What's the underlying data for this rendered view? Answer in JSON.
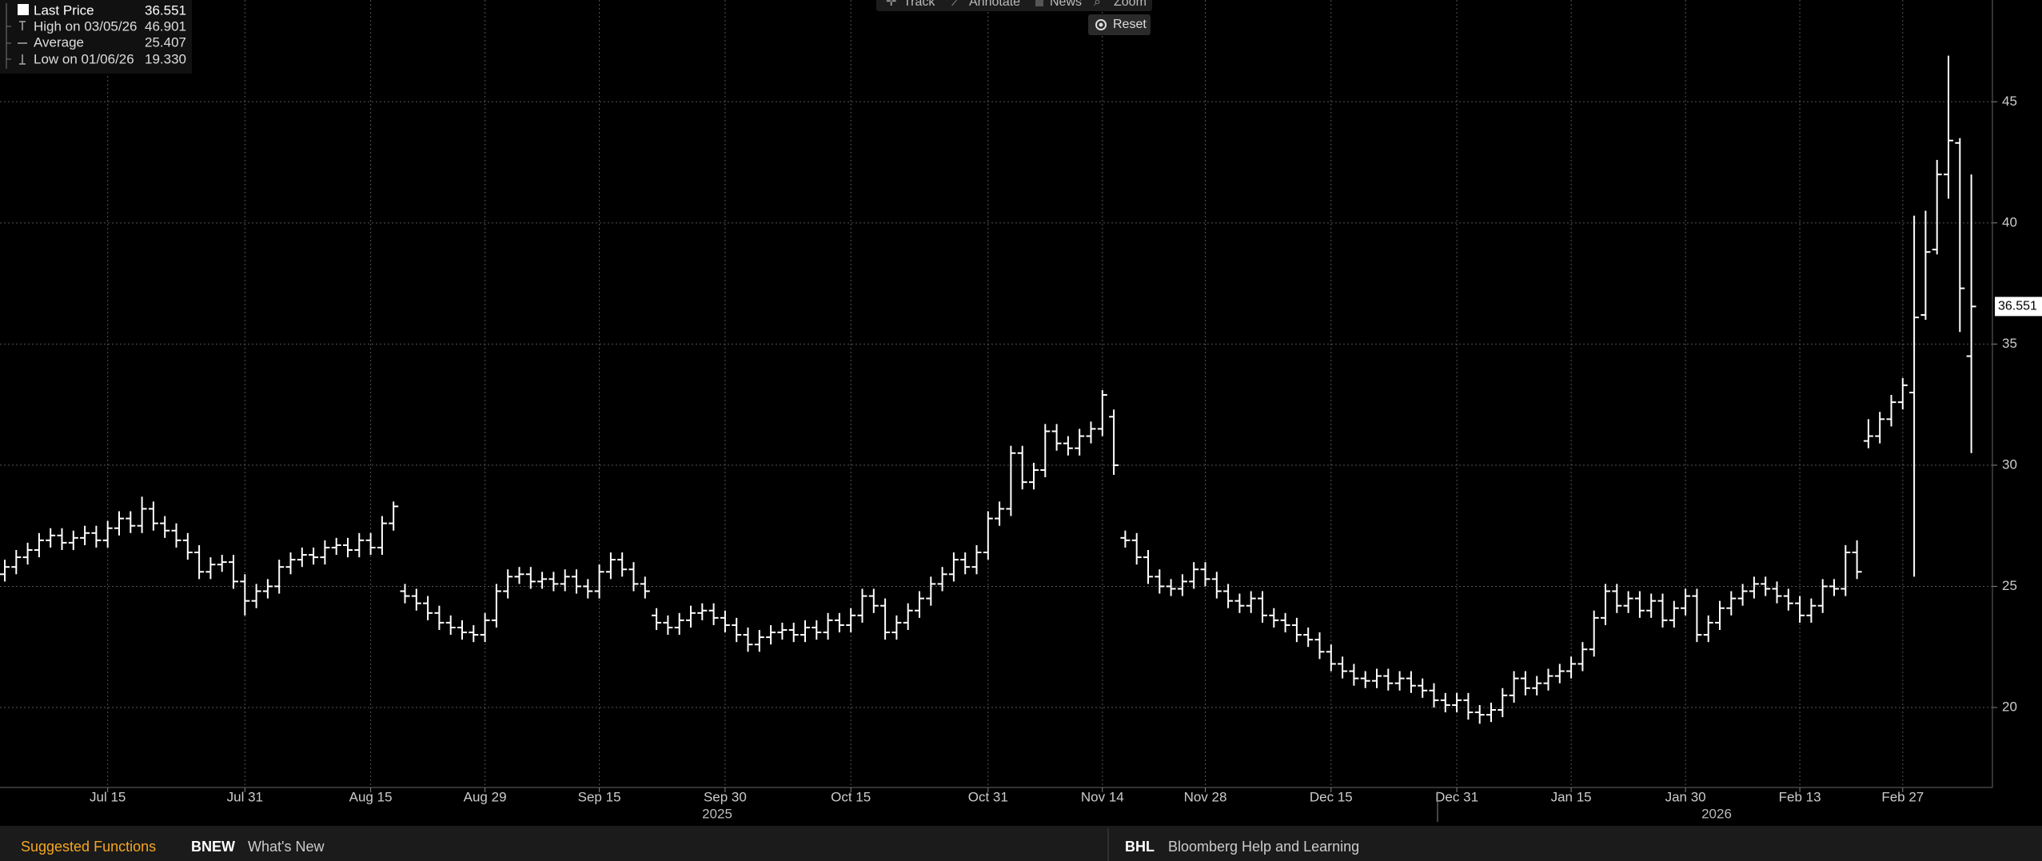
{
  "chart_data": {
    "type": "ohlc",
    "color": "#ffffff",
    "grid": true,
    "ylim": [
      16.7,
      49.2
    ],
    "yticks": [
      20,
      25,
      30,
      35,
      40,
      45
    ],
    "year_labels": [
      "2025",
      "2026"
    ],
    "legend": [
      {
        "name": "Last Price",
        "value": 36.551
      },
      {
        "name": "High on 03/05/26",
        "value": 46.901
      },
      {
        "name": "Average",
        "value": 25.407
      },
      {
        "name": "Low on 01/06/26",
        "value": 19.33,
        "value_label": "19.330"
      }
    ],
    "categories": [
      null,
      null,
      null,
      null,
      null,
      null,
      null,
      null,
      null,
      "Jul 15",
      null,
      null,
      null,
      null,
      null,
      null,
      null,
      null,
      null,
      null,
      null,
      "Jul 31",
      null,
      null,
      null,
      null,
      null,
      null,
      null,
      null,
      null,
      null,
      "Aug 15",
      null,
      null,
      null,
      null,
      null,
      null,
      null,
      null,
      null,
      "Aug 29",
      null,
      null,
      null,
      null,
      null,
      null,
      null,
      null,
      null,
      "Sep 15",
      null,
      null,
      null,
      null,
      null,
      null,
      null,
      null,
      null,
      null,
      "Sep 30",
      null,
      null,
      null,
      null,
      null,
      null,
      null,
      null,
      null,
      null,
      "Oct 15",
      null,
      null,
      null,
      null,
      null,
      null,
      null,
      null,
      null,
      null,
      null,
      "Oct 31",
      null,
      null,
      null,
      null,
      null,
      null,
      null,
      null,
      null,
      "Nov 14",
      null,
      null,
      null,
      null,
      null,
      null,
      null,
      null,
      "Nov 28",
      null,
      null,
      null,
      null,
      null,
      null,
      null,
      null,
      null,
      null,
      "Dec 15",
      null,
      null,
      null,
      null,
      null,
      null,
      null,
      null,
      null,
      null,
      "Dec 31",
      null,
      null,
      null,
      null,
      null,
      null,
      null,
      null,
      null,
      "Jan 15",
      null,
      null,
      null,
      null,
      null,
      null,
      null,
      null,
      null,
      "Jan 30",
      null,
      null,
      null,
      null,
      null,
      null,
      null,
      null,
      null,
      "Feb 13",
      null,
      null,
      null,
      null,
      null,
      null,
      null,
      null,
      "Feb 27",
      null,
      null,
      null,
      null,
      null,
      null
    ],
    "open": [
      25.5,
      25.8,
      26.2,
      26.5,
      26.9,
      27.1,
      26.8,
      27.0,
      27.2,
      26.9,
      27.4,
      27.8,
      27.5,
      28.2,
      27.6,
      27.3,
      26.9,
      26.4,
      25.6,
      25.9,
      26.0,
      25.2,
      24.4,
      24.8,
      25.0,
      25.8,
      26.1,
      26.3,
      26.2,
      26.6,
      26.7,
      26.5,
      26.9,
      26.6,
      27.6,
      24.8,
      24.6,
      24.3,
      23.9,
      23.5,
      23.3,
      23.1,
      23.0,
      23.6,
      24.8,
      25.4,
      25.5,
      25.2,
      25.3,
      25.1,
      25.4,
      25.0,
      24.8,
      25.6,
      26.1,
      25.7,
      25.1,
      23.8,
      23.5,
      23.3,
      23.6,
      23.9,
      24.0,
      23.7,
      23.4,
      23.0,
      22.6,
      22.9,
      23.1,
      23.2,
      23.0,
      23.3,
      23.1,
      23.6,
      23.4,
      23.8,
      24.6,
      24.2,
      23.1,
      23.5,
      24.0,
      24.5,
      25.1,
      25.5,
      26.1,
      25.8,
      26.4,
      27.8,
      28.2,
      30.5,
      29.3,
      29.8,
      31.4,
      30.9,
      30.7,
      31.2,
      31.5,
      32.0,
      27.0,
      26.9,
      26.2,
      25.4,
      25.0,
      24.9,
      25.2,
      25.7,
      25.3,
      24.8,
      24.4,
      24.2,
      24.5,
      23.8,
      23.6,
      23.4,
      23.0,
      22.8,
      22.3,
      21.8,
      21.5,
      21.2,
      21.1,
      21.3,
      21.0,
      21.2,
      20.9,
      20.7,
      20.3,
      20.1,
      20.3,
      19.8,
      19.7,
      19.9,
      20.5,
      21.2,
      20.8,
      21.0,
      21.3,
      21.5,
      21.8,
      22.4,
      23.7,
      24.8,
      24.2,
      24.5,
      24.0,
      24.4,
      23.6,
      24.1,
      24.6,
      23.0,
      23.5,
      24.1,
      24.5,
      24.8,
      25.1,
      24.9,
      24.6,
      24.3,
      23.8,
      24.2,
      25.0,
      24.9,
      26.4,
      31.0,
      31.2,
      31.9,
      32.6,
      33.0,
      36.2,
      38.9,
      42.0,
      43.3,
      34.5
    ],
    "high": [
      26.1,
      26.5,
      26.8,
      27.2,
      27.4,
      27.4,
      27.3,
      27.5,
      27.5,
      27.7,
      28.1,
      28.1,
      28.7,
      28.5,
      27.9,
      27.6,
      27.2,
      26.7,
      26.2,
      26.3,
      26.3,
      25.5,
      25.1,
      25.3,
      26.1,
      26.4,
      26.6,
      26.6,
      26.9,
      27.0,
      27.0,
      27.2,
      27.2,
      27.9,
      28.5,
      25.1,
      24.9,
      24.6,
      24.2,
      23.8,
      23.6,
      23.4,
      23.9,
      25.1,
      25.7,
      25.8,
      25.8,
      25.6,
      25.6,
      25.7,
      25.7,
      25.3,
      25.9,
      26.4,
      26.4,
      26.0,
      25.4,
      24.1,
      23.8,
      23.9,
      24.2,
      24.3,
      24.3,
      24.0,
      23.7,
      23.3,
      23.2,
      23.4,
      23.5,
      23.5,
      23.6,
      23.6,
      23.9,
      23.9,
      24.1,
      24.9,
      24.9,
      24.5,
      23.8,
      24.3,
      24.8,
      25.4,
      25.8,
      26.4,
      26.4,
      26.7,
      28.1,
      28.5,
      30.8,
      30.8,
      30.1,
      31.7,
      31.7,
      31.2,
      31.5,
      31.8,
      33.1,
      32.3,
      27.3,
      27.2,
      26.5,
      25.7,
      25.3,
      25.5,
      26.0,
      26.0,
      25.6,
      25.1,
      24.7,
      24.8,
      24.8,
      24.1,
      23.9,
      23.7,
      23.3,
      23.1,
      22.6,
      22.1,
      21.8,
      21.5,
      21.6,
      21.6,
      21.5,
      21.5,
      21.2,
      21.0,
      20.6,
      20.6,
      20.6,
      20.1,
      20.2,
      20.8,
      21.5,
      21.5,
      21.3,
      21.6,
      21.8,
      22.1,
      22.7,
      24.0,
      25.1,
      25.1,
      24.8,
      24.8,
      24.7,
      24.7,
      24.4,
      24.9,
      24.9,
      23.8,
      24.4,
      24.8,
      25.1,
      25.4,
      25.4,
      25.2,
      24.9,
      24.6,
      24.5,
      25.3,
      25.3,
      26.7,
      26.9,
      31.9,
      32.2,
      32.9,
      33.6,
      40.3,
      40.5,
      42.6,
      46.901,
      43.5,
      42.0
    ],
    "low": [
      25.2,
      25.5,
      25.9,
      26.2,
      26.6,
      26.5,
      26.5,
      26.7,
      26.6,
      26.6,
      27.1,
      27.2,
      27.2,
      27.3,
      27.0,
      26.6,
      26.1,
      25.3,
      25.3,
      25.6,
      24.9,
      23.8,
      24.1,
      24.5,
      24.7,
      25.5,
      25.8,
      25.9,
      25.9,
      26.3,
      26.2,
      26.2,
      26.3,
      26.3,
      27.3,
      24.3,
      24.0,
      23.6,
      23.2,
      23.0,
      22.8,
      22.7,
      22.7,
      23.3,
      24.5,
      25.1,
      24.9,
      24.9,
      24.8,
      24.8,
      24.7,
      24.5,
      24.5,
      25.3,
      25.4,
      24.8,
      24.5,
      23.2,
      23.0,
      23.0,
      23.3,
      23.6,
      23.4,
      23.1,
      22.7,
      22.3,
      22.3,
      22.6,
      22.8,
      22.7,
      22.7,
      22.8,
      22.8,
      23.1,
      23.1,
      23.5,
      23.9,
      22.8,
      22.8,
      23.2,
      23.7,
      24.2,
      24.8,
      25.2,
      25.5,
      25.5,
      26.1,
      27.5,
      27.9,
      29.0,
      29.0,
      29.5,
      30.6,
      30.4,
      30.4,
      30.9,
      31.2,
      29.6,
      26.6,
      25.9,
      25.1,
      24.7,
      24.6,
      24.6,
      24.9,
      25.0,
      24.5,
      24.1,
      23.9,
      23.9,
      23.5,
      23.3,
      23.1,
      22.7,
      22.5,
      22.0,
      21.5,
      21.2,
      20.9,
      20.8,
      20.8,
      20.7,
      20.7,
      20.6,
      20.4,
      20.0,
      19.8,
      19.8,
      19.5,
      19.33,
      19.4,
      19.6,
      20.2,
      20.5,
      20.5,
      20.7,
      21.0,
      21.2,
      21.5,
      22.1,
      23.4,
      23.9,
      23.9,
      23.7,
      23.7,
      23.3,
      23.3,
      23.8,
      22.7,
      22.7,
      23.2,
      23.8,
      24.2,
      24.5,
      24.6,
      24.3,
      24.0,
      23.5,
      23.5,
      23.9,
      24.6,
      24.6,
      25.3,
      30.7,
      30.9,
      31.6,
      32.3,
      25.4,
      36.0,
      38.7,
      41.0,
      35.5,
      30.5
    ],
    "close": [
      25.8,
      26.2,
      26.5,
      26.9,
      27.1,
      26.8,
      27.0,
      27.2,
      26.9,
      27.4,
      27.8,
      27.5,
      28.2,
      27.6,
      27.3,
      26.9,
      26.4,
      25.6,
      25.9,
      26.0,
      25.2,
      24.4,
      24.8,
      25.0,
      25.8,
      26.1,
      26.3,
      26.2,
      26.6,
      26.7,
      26.5,
      26.9,
      26.6,
      27.6,
      28.3,
      24.6,
      24.3,
      23.9,
      23.5,
      23.3,
      23.1,
      23.0,
      23.6,
      24.8,
      25.4,
      25.5,
      25.2,
      25.3,
      25.1,
      25.4,
      25.0,
      24.8,
      25.6,
      26.1,
      25.7,
      25.1,
      24.8,
      23.5,
      23.3,
      23.6,
      23.9,
      24.0,
      23.7,
      23.4,
      23.0,
      22.6,
      22.9,
      23.1,
      23.2,
      23.0,
      23.3,
      23.1,
      23.6,
      23.4,
      23.8,
      24.6,
      24.2,
      23.1,
      23.5,
      24.0,
      24.5,
      25.1,
      25.5,
      26.1,
      25.8,
      26.4,
      27.8,
      28.2,
      30.5,
      29.3,
      29.8,
      31.4,
      30.9,
      30.7,
      31.2,
      31.5,
      32.9,
      30.0,
      26.9,
      26.2,
      25.4,
      25.0,
      24.9,
      25.2,
      25.7,
      25.3,
      24.8,
      24.4,
      24.2,
      24.5,
      23.8,
      23.6,
      23.4,
      23.0,
      22.8,
      22.3,
      21.8,
      21.5,
      21.2,
      21.1,
      21.3,
      21.0,
      21.2,
      20.9,
      20.7,
      20.3,
      20.1,
      20.3,
      19.8,
      19.7,
      19.9,
      20.5,
      21.2,
      20.8,
      21.0,
      21.3,
      21.5,
      21.8,
      22.4,
      23.7,
      24.8,
      24.2,
      24.5,
      24.0,
      24.4,
      23.6,
      24.1,
      24.6,
      23.0,
      23.5,
      24.1,
      24.5,
      24.8,
      25.1,
      24.9,
      24.6,
      24.3,
      23.8,
      24.2,
      25.0,
      24.9,
      26.4,
      25.6,
      31.2,
      31.9,
      32.6,
      33.3,
      36.1,
      38.8,
      42.0,
      43.4,
      37.3,
      36.551
    ]
  },
  "toolbar": {
    "track": "Track",
    "annotate": "Annotate",
    "news": "News",
    "zoom": "Zoom",
    "reset": "Reset"
  },
  "footer": {
    "suggested": "Suggested Functions",
    "bnew_code": "BNEW",
    "bnew_text": "What's New",
    "bhl_code": "BHL",
    "bhl_text": "Bloomberg Help and Learning"
  }
}
